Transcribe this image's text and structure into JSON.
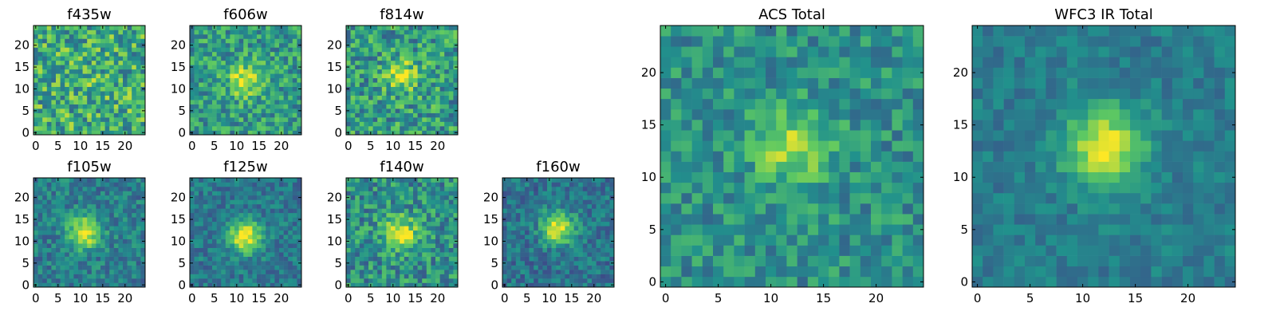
{
  "colormap": [
    "#440154",
    "#3b528b",
    "#21918c",
    "#5ec962",
    "#fde725"
  ],
  "chart_data": [
    {
      "type": "heatmap",
      "title": "f435w",
      "grid_size": 25,
      "xticks": [
        "0",
        "5",
        "10",
        "15",
        "20"
      ],
      "yticks": [
        "0",
        "5",
        "10",
        "15",
        "20"
      ],
      "xlim": [
        0,
        25
      ],
      "ylim": [
        0,
        25
      ],
      "peak": {
        "x": 12,
        "y": 13
      },
      "peak_strength": 0.05,
      "mean_level": 0.62,
      "noise": 0.28,
      "seed": 11
    },
    {
      "type": "heatmap",
      "title": "f606w",
      "grid_size": 25,
      "xticks": [
        "0",
        "5",
        "10",
        "15",
        "20"
      ],
      "yticks": [
        "0",
        "5",
        "10",
        "15",
        "20"
      ],
      "xlim": [
        0,
        25
      ],
      "ylim": [
        0,
        25
      ],
      "peak": {
        "x": 12,
        "y": 12
      },
      "peak_strength": 0.4,
      "mean_level": 0.55,
      "noise": 0.22,
      "seed": 23
    },
    {
      "type": "heatmap",
      "title": "f814w",
      "grid_size": 25,
      "xticks": [
        "0",
        "5",
        "10",
        "15",
        "20"
      ],
      "yticks": [
        "0",
        "5",
        "10",
        "15",
        "20"
      ],
      "xlim": [
        0,
        25
      ],
      "ylim": [
        0,
        25
      ],
      "peak": {
        "x": 12,
        "y": 13
      },
      "peak_strength": 0.35,
      "mean_level": 0.55,
      "noise": 0.25,
      "seed": 37
    },
    {
      "type": "heatmap",
      "title": "f105w",
      "grid_size": 25,
      "xticks": [
        "0",
        "5",
        "10",
        "15",
        "20"
      ],
      "yticks": [
        "0",
        "5",
        "10",
        "15",
        "20"
      ],
      "xlim": [
        0,
        25
      ],
      "ylim": [
        0,
        25
      ],
      "peak": {
        "x": 11,
        "y": 12
      },
      "peak_strength": 0.55,
      "mean_level": 0.42,
      "noise": 0.16,
      "seed": 41
    },
    {
      "type": "heatmap",
      "title": "f125w",
      "grid_size": 25,
      "xticks": [
        "0",
        "5",
        "10",
        "15",
        "20"
      ],
      "yticks": [
        "0",
        "5",
        "10",
        "15",
        "20"
      ],
      "xlim": [
        0,
        25
      ],
      "ylim": [
        0,
        25
      ],
      "peak": {
        "x": 12,
        "y": 11
      },
      "peak_strength": 0.6,
      "mean_level": 0.4,
      "noise": 0.14,
      "seed": 53
    },
    {
      "type": "heatmap",
      "title": "f140w",
      "grid_size": 25,
      "xticks": [
        "0",
        "5",
        "10",
        "15",
        "20"
      ],
      "yticks": [
        "0",
        "5",
        "10",
        "15",
        "20"
      ],
      "xlim": [
        0,
        25
      ],
      "ylim": [
        0,
        25
      ],
      "peak": {
        "x": 12,
        "y": 12
      },
      "peak_strength": 0.45,
      "mean_level": 0.5,
      "noise": 0.22,
      "seed": 67
    },
    {
      "type": "heatmap",
      "title": "f160w",
      "grid_size": 25,
      "xticks": [
        "0",
        "5",
        "10",
        "15",
        "20"
      ],
      "yticks": [
        "0",
        "5",
        "10",
        "15",
        "20"
      ],
      "xlim": [
        0,
        25
      ],
      "ylim": [
        0,
        25
      ],
      "peak": {
        "x": 12,
        "y": 13
      },
      "peak_strength": 0.6,
      "mean_level": 0.38,
      "noise": 0.15,
      "seed": 79
    },
    {
      "type": "heatmap",
      "title": "ACS Total",
      "grid_size": 25,
      "xticks": [
        "0",
        "5",
        "10",
        "15",
        "20"
      ],
      "yticks": [
        "0",
        "5",
        "10",
        "15",
        "20"
      ],
      "xlim": [
        0,
        25
      ],
      "ylim": [
        0,
        25
      ],
      "peak": {
        "x": 12,
        "y": 13
      },
      "peak_strength": 0.35,
      "mean_level": 0.5,
      "noise": 0.17,
      "seed": 97
    },
    {
      "type": "heatmap",
      "title": "WFC3 IR Total",
      "grid_size": 25,
      "xticks": [
        "0",
        "5",
        "10",
        "15",
        "20"
      ],
      "yticks": [
        "0",
        "5",
        "10",
        "15",
        "20"
      ],
      "xlim": [
        0,
        25
      ],
      "ylim": [
        0,
        25
      ],
      "peak": {
        "x": 12,
        "y": 13
      },
      "peak_strength": 0.55,
      "mean_level": 0.42,
      "noise": 0.1,
      "seed": 101
    }
  ]
}
